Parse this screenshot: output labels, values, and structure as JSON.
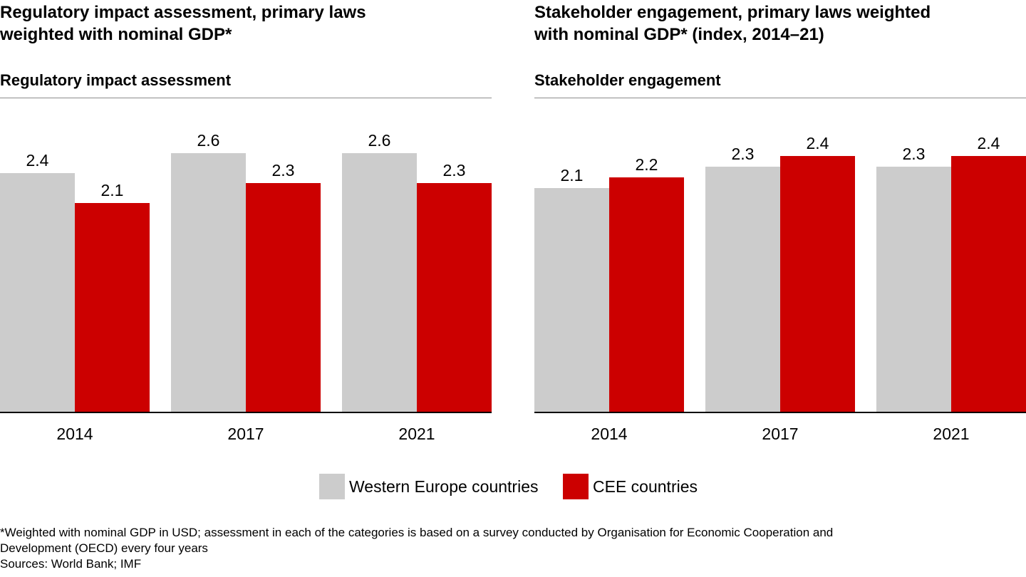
{
  "colors": {
    "western": "#cccccc",
    "cee": "#cc0000",
    "axis": "#000000"
  },
  "legend": {
    "western_label": "Western Europe countries",
    "cee_label": "CEE countries"
  },
  "footnote": {
    "line1": "*Weighted with nominal GDP in USD; assessment in each of the categories is based on a survey conducted by Organisation for Economic Cooperation and",
    "line2": "Development (OECD) every four years",
    "line3": "Sources: World Bank; IMF"
  },
  "chart_data": [
    {
      "type": "bar",
      "title": "Regulatory impact assessment, primary laws weighted with nominal GDP*",
      "title_lines": [
        "Regulatory impact assessment, primary laws",
        "weighted with nominal GDP*"
      ],
      "subtitle": "Regulatory impact assessment",
      "categories": [
        "2014",
        "2017",
        "2021"
      ],
      "series": [
        {
          "name": "Western Europe countries",
          "values": [
            2.4,
            2.6,
            2.6
          ],
          "labels": [
            "2.4",
            "2.6",
            "2.6"
          ]
        },
        {
          "name": "CEE countries",
          "values": [
            2.1,
            2.3,
            2.3
          ],
          "labels": [
            "2.1",
            "2.3",
            "2.3"
          ]
        }
      ],
      "ylim": [
        0,
        3.0
      ],
      "grid": false,
      "legend_position": "bottom"
    },
    {
      "type": "bar",
      "title": "Stakeholder engagement, primary laws weighted with nominal GDP* (index, 2014–21)",
      "title_lines": [
        "Stakeholder engagement, primary laws weighted",
        "with nominal GDP* (index, 2014–21)"
      ],
      "subtitle": "Stakeholder engagement",
      "categories": [
        "2014",
        "2017",
        "2021"
      ],
      "series": [
        {
          "name": "Western Europe countries",
          "values": [
            2.1,
            2.3,
            2.3
          ],
          "labels": [
            "2.1",
            "2.3",
            "2.3"
          ]
        },
        {
          "name": "CEE countries",
          "values": [
            2.2,
            2.4,
            2.4
          ],
          "labels": [
            "2.2",
            "2.4",
            "2.4"
          ]
        }
      ],
      "ylim": [
        0,
        2.8
      ],
      "grid": false,
      "legend_position": "bottom"
    }
  ]
}
